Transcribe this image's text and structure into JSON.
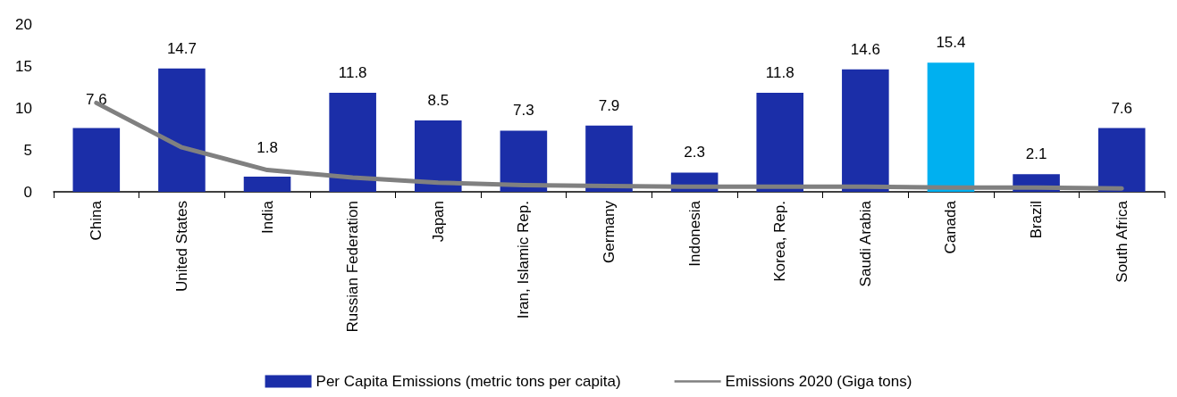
{
  "chart_data": {
    "type": "bar",
    "categories": [
      "China",
      "United States",
      "India",
      "Russian Federation",
      "Japan",
      "Iran, Islamic Rep.",
      "Germany",
      "Indonesia",
      "Korea, Rep.",
      "Saudi Arabia",
      "Canada",
      "Brazil",
      "South Africa"
    ],
    "series": [
      {
        "name": "Per Capita Emissions (metric tons per capita)",
        "color": "#1b2ea8",
        "colors": [
          "#1b2ea8",
          "#1b2ea8",
          "#1b2ea8",
          "#1b2ea8",
          "#1b2ea8",
          "#1b2ea8",
          "#1b2ea8",
          "#1b2ea8",
          "#1b2ea8",
          "#1b2ea8",
          "#00b0f0",
          "#1b2ea8",
          "#1b2ea8"
        ],
        "values": [
          7.6,
          14.7,
          1.8,
          11.8,
          8.5,
          7.3,
          7.9,
          2.3,
          11.8,
          14.6,
          15.4,
          2.1,
          7.6
        ],
        "data_labels": true
      },
      {
        "name": "Emissions 2020 (Giga tons)",
        "type": "line",
        "color": "#808080",
        "values": [
          10.6,
          5.3,
          2.6,
          1.7,
          1.1,
          0.8,
          0.7,
          0.6,
          0.6,
          0.6,
          0.5,
          0.5,
          0.4
        ],
        "marker": "none"
      }
    ],
    "ylim": [
      0,
      20
    ],
    "yticks": [
      0,
      5,
      10,
      15,
      20
    ],
    "grid": false,
    "legend": "bottom"
  }
}
